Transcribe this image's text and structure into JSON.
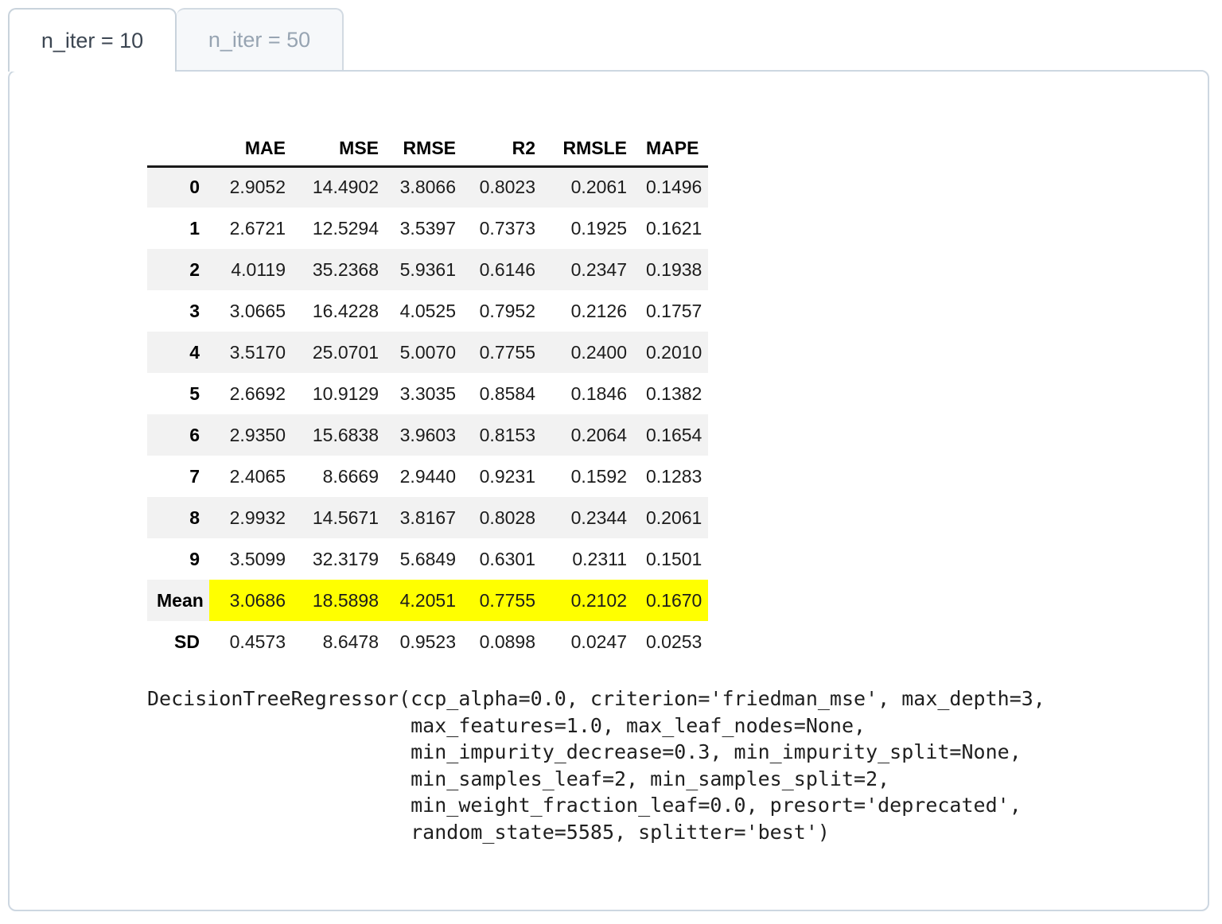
{
  "tabs": [
    {
      "label": "n_iter = 10",
      "active": true
    },
    {
      "label": "n_iter = 50",
      "active": false
    }
  ],
  "metrics_table": {
    "index_header": "",
    "columns": [
      "MAE",
      "MSE",
      "RMSE",
      "R2",
      "RMSLE",
      "MAPE"
    ],
    "rows": [
      {
        "label": "0",
        "values": [
          "2.9052",
          "14.4902",
          "3.8066",
          "0.8023",
          "0.2061",
          "0.1496"
        ],
        "highlight": false
      },
      {
        "label": "1",
        "values": [
          "2.6721",
          "12.5294",
          "3.5397",
          "0.7373",
          "0.1925",
          "0.1621"
        ],
        "highlight": false
      },
      {
        "label": "2",
        "values": [
          "4.0119",
          "35.2368",
          "5.9361",
          "0.6146",
          "0.2347",
          "0.1938"
        ],
        "highlight": false
      },
      {
        "label": "3",
        "values": [
          "3.0665",
          "16.4228",
          "4.0525",
          "0.7952",
          "0.2126",
          "0.1757"
        ],
        "highlight": false
      },
      {
        "label": "4",
        "values": [
          "3.5170",
          "25.0701",
          "5.0070",
          "0.7755",
          "0.2400",
          "0.2010"
        ],
        "highlight": false
      },
      {
        "label": "5",
        "values": [
          "2.6692",
          "10.9129",
          "3.3035",
          "0.8584",
          "0.1846",
          "0.1382"
        ],
        "highlight": false
      },
      {
        "label": "6",
        "values": [
          "2.9350",
          "15.6838",
          "3.9603",
          "0.8153",
          "0.2064",
          "0.1654"
        ],
        "highlight": false
      },
      {
        "label": "7",
        "values": [
          "2.4065",
          "8.6669",
          "2.9440",
          "0.9231",
          "0.1592",
          "0.1283"
        ],
        "highlight": false
      },
      {
        "label": "8",
        "values": [
          "2.9932",
          "14.5671",
          "3.8167",
          "0.8028",
          "0.2344",
          "0.2061"
        ],
        "highlight": false
      },
      {
        "label": "9",
        "values": [
          "3.5099",
          "32.3179",
          "5.6849",
          "0.6301",
          "0.2311",
          "0.1501"
        ],
        "highlight": false
      },
      {
        "label": "Mean",
        "values": [
          "3.0686",
          "18.5898",
          "4.2051",
          "0.7755",
          "0.2102",
          "0.1670"
        ],
        "highlight": true
      },
      {
        "label": "SD",
        "values": [
          "0.4573",
          "8.6478",
          "0.9523",
          "0.0898",
          "0.0247",
          "0.0253"
        ],
        "highlight": false
      }
    ]
  },
  "model_output_lines": [
    "DecisionTreeRegressor(ccp_alpha=0.0, criterion='friedman_mse', max_depth=3,",
    "                      max_features=1.0, max_leaf_nodes=None,",
    "                      min_impurity_decrease=0.3, min_impurity_split=None,",
    "                      min_samples_leaf=2, min_samples_split=2,",
    "                      min_weight_fraction_leaf=0.0, presort='deprecated',",
    "                      random_state=5585, splitter='best')"
  ],
  "colors": {
    "highlight_row": "#ffff00",
    "row_stripe": "#f2f2f2",
    "panel_border": "#cdd7e1",
    "tab_border": "#c9d3dc",
    "active_tab_text": "#3c4652",
    "inactive_tab_text": "#97a4b2",
    "inactive_tab_bg": "#f6f8fa",
    "header_rule": "#1a1a1a"
  }
}
